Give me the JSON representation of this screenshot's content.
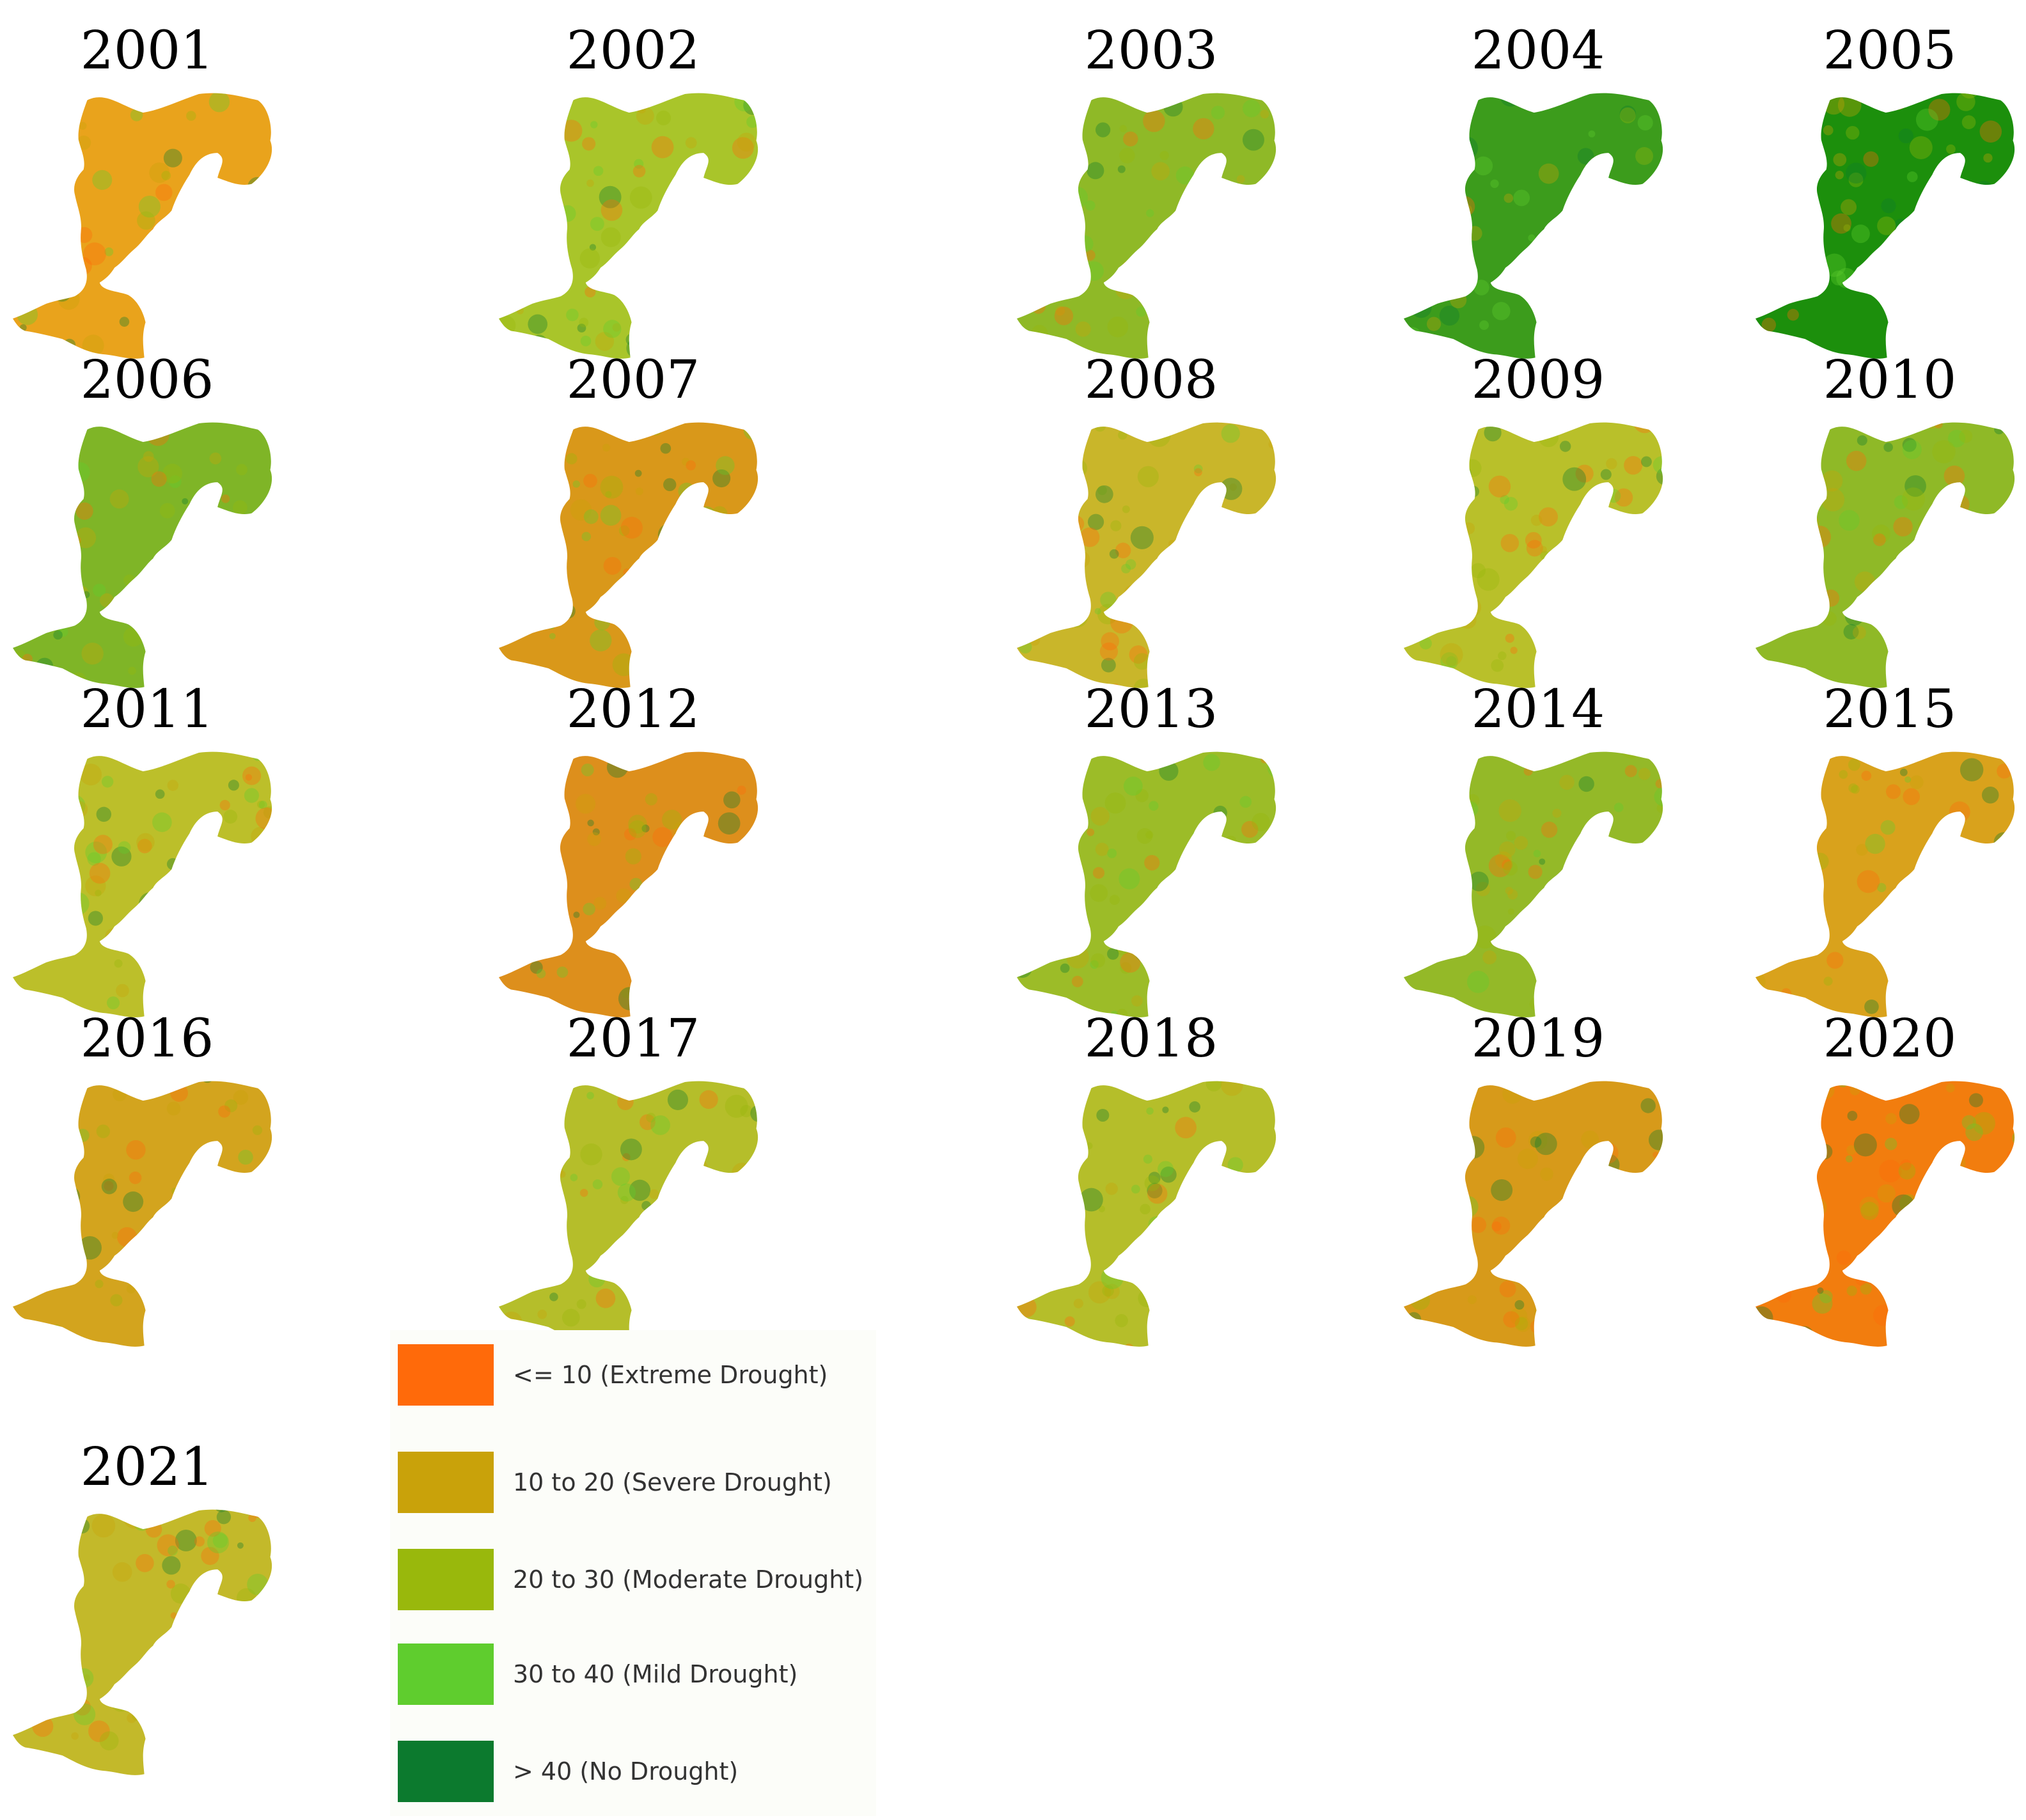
{
  "legend": {
    "classes": [
      {
        "label": "<= 10 (Extreme Drought)",
        "color": "#ff6a0a"
      },
      {
        "label": "10 to 20 (Severe Drought)",
        "color": "#c9a20a"
      },
      {
        "label": "20 to 30 (Moderate Drought)",
        "color": "#99b80c"
      },
      {
        "label": "30 to 40 (Mild Drought)",
        "color": "#5fcd2e"
      },
      {
        "label": " > 40 (No Drought)",
        "color": "#0c7a2e"
      }
    ]
  },
  "maps": [
    {
      "year": "2001",
      "fill": "#e9a31c"
    },
    {
      "year": "2002",
      "fill": "#a9c52a"
    },
    {
      "year": "2003",
      "fill": "#8fb927"
    },
    {
      "year": "2004",
      "fill": "#3c9c1c"
    },
    {
      "year": "2005",
      "fill": "#1c8f0c"
    },
    {
      "year": "2006",
      "fill": "#7fb527"
    },
    {
      "year": "2007",
      "fill": "#d9981a"
    },
    {
      "year": "2008",
      "fill": "#c9b62a"
    },
    {
      "year": "2009",
      "fill": "#b9c02a"
    },
    {
      "year": "2010",
      "fill": "#8fb927"
    },
    {
      "year": "2011",
      "fill": "#bcbf2a"
    },
    {
      "year": "2012",
      "fill": "#dd8f1c"
    },
    {
      "year": "2013",
      "fill": "#9cbc28"
    },
    {
      "year": "2014",
      "fill": "#94b928"
    },
    {
      "year": "2015",
      "fill": "#d9a21c"
    },
    {
      "year": "2016",
      "fill": "#d3a41e"
    },
    {
      "year": "2017",
      "fill": "#b5be2a"
    },
    {
      "year": "2018",
      "fill": "#b5be2a"
    },
    {
      "year": "2019",
      "fill": "#d79a1a"
    },
    {
      "year": "2020",
      "fill": "#f27d0e"
    },
    {
      "year": "2021",
      "fill": "#c3b92a"
    }
  ]
}
